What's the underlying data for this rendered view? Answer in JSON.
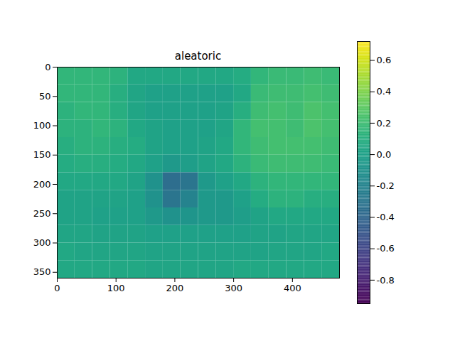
{
  "chart_data": {
    "type": "heatmap",
    "title": "aleatoric",
    "xlim": [
      0,
      480
    ],
    "xticks": [
      0,
      100,
      200,
      300,
      400
    ],
    "ylim": [
      360,
      0
    ],
    "yticks": [
      0,
      50,
      100,
      150,
      200,
      250,
      300,
      350
    ],
    "cells": {
      "x_edges": [
        0,
        30,
        60,
        90,
        120,
        150,
        180,
        210,
        240,
        270,
        300,
        330,
        360,
        390,
        420,
        450,
        480
      ],
      "y_edges": [
        0,
        30,
        60,
        90,
        120,
        150,
        180,
        210,
        240,
        270,
        300,
        330,
        360
      ],
      "values": [
        [
          0.15,
          0.15,
          0.15,
          0.12,
          0.05,
          0.05,
          0.05,
          0.05,
          0.05,
          0.05,
          0.08,
          0.15,
          0.18,
          0.18,
          0.2,
          0.18
        ],
        [
          0.15,
          0.15,
          0.15,
          0.1,
          0.03,
          0.0,
          0.0,
          0.0,
          0.0,
          0.0,
          0.05,
          0.18,
          0.2,
          0.2,
          0.22,
          0.2
        ],
        [
          0.12,
          0.15,
          0.15,
          0.1,
          0.03,
          0.0,
          0.0,
          0.0,
          0.0,
          0.02,
          0.1,
          0.2,
          0.22,
          0.2,
          0.25,
          0.22
        ],
        [
          0.12,
          0.12,
          0.15,
          0.12,
          0.05,
          0.02,
          0.0,
          0.0,
          0.0,
          0.03,
          0.15,
          0.22,
          0.22,
          0.2,
          0.25,
          0.22
        ],
        [
          0.1,
          0.12,
          0.12,
          0.1,
          0.08,
          0.02,
          0.0,
          0.0,
          0.02,
          0.05,
          0.15,
          0.2,
          0.22,
          0.22,
          0.22,
          0.2
        ],
        [
          0.08,
          0.1,
          0.1,
          0.08,
          0.05,
          0.0,
          -0.05,
          -0.02,
          0.02,
          0.05,
          0.12,
          0.18,
          0.2,
          0.2,
          0.2,
          0.18
        ],
        [
          0.05,
          0.05,
          0.05,
          0.05,
          0.02,
          -0.1,
          -0.35,
          -0.3,
          -0.05,
          0.0,
          0.05,
          0.12,
          0.15,
          0.15,
          0.15,
          0.15
        ],
        [
          0.02,
          0.02,
          0.02,
          0.02,
          0.0,
          -0.1,
          -0.3,
          -0.2,
          -0.05,
          -0.05,
          0.0,
          0.08,
          0.12,
          0.12,
          0.1,
          0.1
        ],
        [
          0.02,
          0.02,
          0.0,
          0.0,
          0.0,
          -0.05,
          -0.1,
          -0.08,
          -0.05,
          -0.05,
          -0.02,
          0.02,
          0.05,
          0.05,
          0.05,
          0.05
        ],
        [
          0.03,
          0.03,
          0.02,
          0.02,
          0.02,
          0.0,
          0.0,
          0.0,
          0.0,
          0.0,
          0.0,
          0.02,
          0.02,
          0.03,
          0.03,
          0.03
        ],
        [
          0.05,
          0.03,
          0.03,
          0.03,
          0.03,
          0.02,
          0.02,
          0.02,
          0.02,
          0.02,
          0.02,
          0.02,
          0.03,
          0.03,
          0.03,
          0.05
        ],
        [
          0.05,
          0.05,
          0.05,
          0.05,
          0.05,
          0.03,
          0.03,
          0.03,
          0.03,
          0.03,
          0.05,
          0.05,
          0.05,
          0.05,
          0.05,
          0.05
        ]
      ]
    },
    "colorbar": {
      "range": [
        -0.95,
        0.72
      ],
      "ticks": [
        -0.8,
        -0.6,
        -0.4,
        -0.2,
        {
          "value": 0,
          "label": "0.0"
        },
        0.2,
        0.4,
        0.6
      ]
    }
  }
}
